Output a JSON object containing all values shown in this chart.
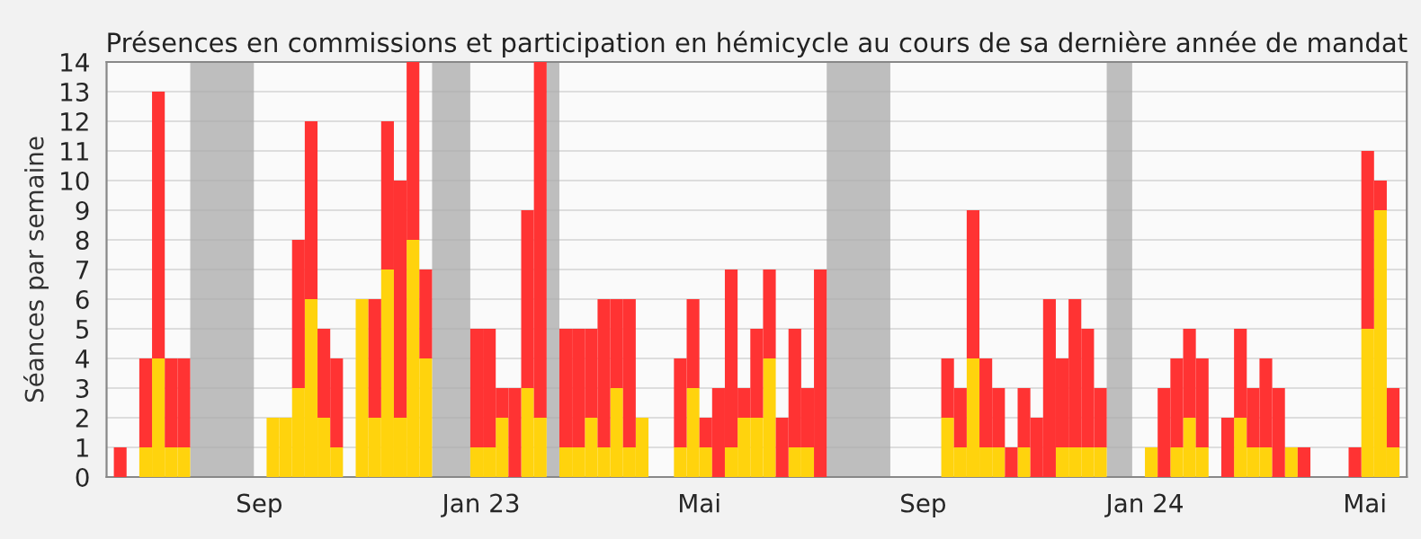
{
  "chart_data": {
    "type": "bar",
    "stacked": true,
    "title": "Présences en commissions et participation en hémicycle au cours de sa dernière année de mandat",
    "ylabel": "Séances par semaine",
    "x": [
      "2022-06-13",
      "2022-06-20",
      "2022-06-27",
      "2022-07-04",
      "2022-07-11",
      "2022-07-18",
      "2022-07-25",
      "2022-08-01",
      "2022-08-08",
      "2022-08-15",
      "2022-08-22",
      "2022-08-29",
      "2022-09-05",
      "2022-09-12",
      "2022-09-19",
      "2022-09-26",
      "2022-10-03",
      "2022-10-10",
      "2022-10-17",
      "2022-10-24",
      "2022-10-31",
      "2022-11-07",
      "2022-11-14",
      "2022-11-21",
      "2022-11-28",
      "2022-12-05",
      "2022-12-12",
      "2022-12-19",
      "2022-12-26",
      "2023-01-02",
      "2023-01-09",
      "2023-01-16",
      "2023-01-23",
      "2023-01-30",
      "2023-02-06",
      "2023-02-13",
      "2023-02-20",
      "2023-02-27",
      "2023-03-06",
      "2023-03-13",
      "2023-03-20",
      "2023-03-27",
      "2023-04-03",
      "2023-04-10",
      "2023-04-17",
      "2023-04-24",
      "2023-05-01",
      "2023-05-08",
      "2023-05-15",
      "2023-05-22",
      "2023-05-29",
      "2023-06-05",
      "2023-06-12",
      "2023-06-19",
      "2023-06-26",
      "2023-07-03",
      "2023-07-10",
      "2023-07-17",
      "2023-07-24",
      "2023-07-31",
      "2023-08-07",
      "2023-08-14",
      "2023-08-21",
      "2023-08-28",
      "2023-09-04",
      "2023-09-11",
      "2023-09-18",
      "2023-09-25",
      "2023-10-02",
      "2023-10-09",
      "2023-10-16",
      "2023-10-23",
      "2023-10-30",
      "2023-11-06",
      "2023-11-13",
      "2023-11-20",
      "2023-11-27",
      "2023-12-04",
      "2023-12-11",
      "2023-12-18",
      "2023-12-25",
      "2024-01-01",
      "2024-01-08",
      "2024-01-15",
      "2024-01-22",
      "2024-01-29",
      "2024-02-05",
      "2024-02-12",
      "2024-02-19",
      "2024-02-26",
      "2024-03-04",
      "2024-03-11",
      "2024-03-18",
      "2024-03-25",
      "2024-04-01",
      "2024-04-08",
      "2024-04-15",
      "2024-04-22",
      "2024-04-29",
      "2024-05-06",
      "2024-05-13"
    ],
    "series": [
      {
        "color": "#ffd30d",
        "values": [
          0,
          0,
          1,
          4,
          1,
          1,
          0,
          0,
          0,
          0,
          0,
          0,
          2,
          2,
          3,
          6,
          2,
          1,
          0,
          6,
          2,
          7,
          2,
          8,
          4,
          0,
          0,
          0,
          1,
          1,
          2,
          0,
          3,
          2,
          0,
          1,
          1,
          2,
          1,
          3,
          1,
          2,
          0,
          0,
          1,
          3,
          1,
          0,
          1,
          2,
          2,
          4,
          0,
          1,
          1,
          0,
          0,
          0,
          0,
          0,
          0,
          0,
          0,
          0,
          0,
          2,
          1,
          4,
          1,
          1,
          0,
          1,
          0,
          0,
          1,
          1,
          1,
          1,
          0,
          0,
          0,
          1,
          0,
          1,
          2,
          1,
          0,
          0,
          2,
          1,
          1,
          0,
          1,
          0,
          0,
          0,
          0,
          0,
          5,
          9,
          1
        ]
      },
      {
        "color": "#ff3333",
        "values": [
          1,
          0,
          3,
          9,
          3,
          3,
          0,
          0,
          0,
          0,
          0,
          0,
          0,
          0,
          5,
          6,
          3,
          3,
          0,
          0,
          4,
          5,
          8,
          6,
          3,
          0,
          0,
          0,
          4,
          4,
          1,
          3,
          6,
          12,
          0,
          4,
          4,
          3,
          5,
          3,
          5,
          0,
          0,
          0,
          3,
          3,
          1,
          3,
          6,
          1,
          3,
          3,
          2,
          4,
          2,
          7,
          0,
          0,
          0,
          0,
          0,
          0,
          0,
          0,
          0,
          2,
          2,
          5,
          3,
          2,
          1,
          2,
          2,
          6,
          3,
          5,
          4,
          2,
          0,
          0,
          0,
          0,
          3,
          3,
          3,
          3,
          0,
          2,
          3,
          2,
          3,
          3,
          0,
          1,
          0,
          0,
          0,
          1,
          6,
          1,
          2
        ]
      }
    ],
    "xlim": [
      "2022-06-09",
      "2024-05-24"
    ],
    "xticks": [
      {
        "value": "2022-09-01",
        "label": "Sep"
      },
      {
        "value": "2023-01-01",
        "label": "Jan 23"
      },
      {
        "value": "2023-05-01",
        "label": "Mai"
      },
      {
        "value": "2023-09-01",
        "label": "Sep"
      },
      {
        "value": "2024-01-01",
        "label": "Jan 24"
      },
      {
        "value": "2024-05-01",
        "label": "Mai"
      }
    ],
    "ylim": [
      0,
      14
    ],
    "yticks": [
      0,
      1,
      2,
      3,
      4,
      5,
      6,
      7,
      8,
      9,
      10,
      11,
      12,
      13,
      14
    ],
    "bands": [
      {
        "axis": "x",
        "from": "2022-07-25",
        "to": "2022-08-29",
        "color": "#aaaaaa"
      },
      {
        "axis": "x",
        "from": "2022-12-05",
        "to": "2022-12-26",
        "color": "#aaaaaa"
      },
      {
        "axis": "x",
        "from": "2023-02-06",
        "to": "2023-02-13",
        "color": "#aaaaaa"
      },
      {
        "axis": "x",
        "from": "2023-07-10",
        "to": "2023-08-14",
        "color": "#aaaaaa"
      },
      {
        "axis": "x",
        "from": "2023-12-11",
        "to": "2023-12-25",
        "color": "#aaaaaa"
      }
    ],
    "grid": "y"
  }
}
